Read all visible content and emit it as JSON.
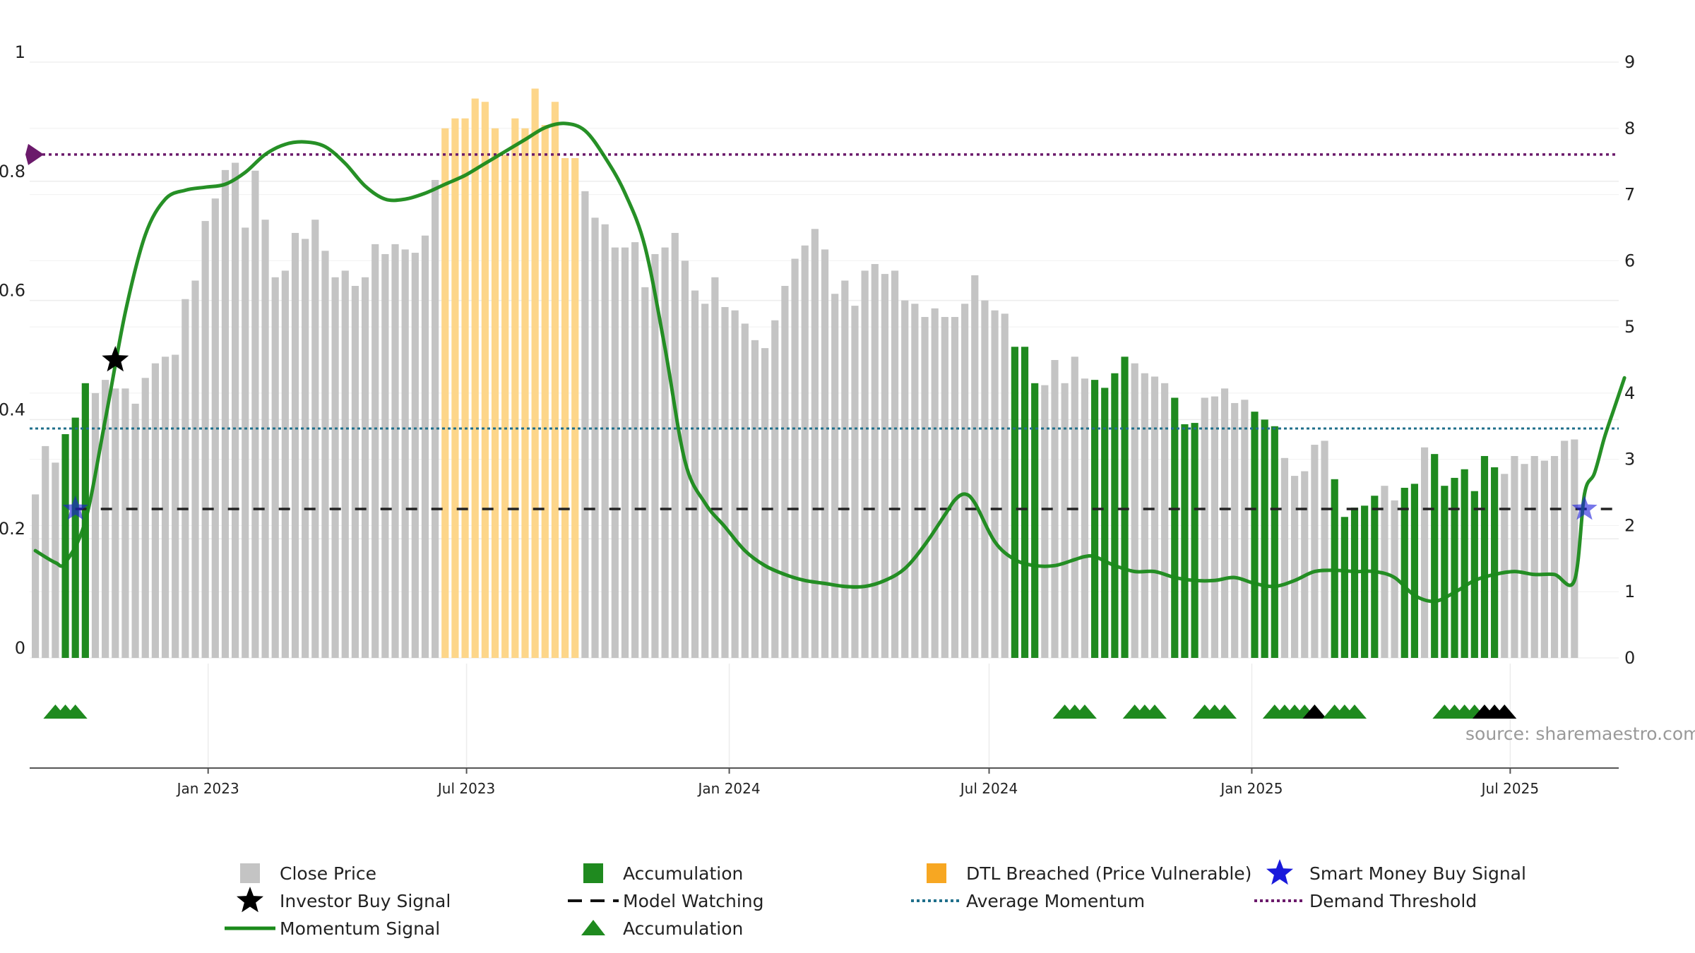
{
  "source": "source: sharemaestro.com",
  "legend": [
    {
      "label": "Close Price",
      "icon": "grey-square-icon"
    },
    {
      "label": "Accumulation",
      "icon": "green-square-icon"
    },
    {
      "label": "DTL Breached (Price Vulnerable)",
      "icon": "orange-square-icon"
    },
    {
      "label": "Smart Money Buy Signal",
      "icon": "blue-star-icon"
    },
    {
      "label": "Investor Buy Signal",
      "icon": "black-star-icon"
    },
    {
      "label": "Model Watching",
      "icon": "dashed-line-icon"
    },
    {
      "label": "Average Momentum",
      "icon": "dotted-blue-line-icon"
    },
    {
      "label": "Demand Threshold",
      "icon": "dotted-purple-line-icon"
    },
    {
      "label": "Momentum Signal",
      "icon": "green-line-icon"
    },
    {
      "label": "Accumulation",
      "icon": "green-triangle-icon"
    }
  ],
  "chart_data": {
    "type": "bar",
    "colors": {
      "close_price": "#c4c4c4",
      "accumulation": "#1f8a1f",
      "dtl_breached": "#fdd68a",
      "momentum": "#1a8a1a",
      "average_momentum": "#1f6f8b",
      "demand_threshold": "#6b1a6b",
      "model_watching": "#222222",
      "smart_money": "#1a1adb",
      "investor_buy": "#000000"
    },
    "left_axis": {
      "ylim": [
        0,
        1
      ],
      "ticks": [
        "0",
        "0.2",
        "0.4",
        "0.6",
        "0.8",
        "1"
      ]
    },
    "right_axis": {
      "ylim": [
        0,
        9
      ],
      "ticks": [
        "0",
        "1",
        "2",
        "3",
        "4",
        "5",
        "6",
        "7",
        "8",
        "9"
      ]
    },
    "x_ticks": [
      "Jan 2023",
      "Jul 2023",
      "Jan 2024",
      "Jul 2024",
      "Jan 2025",
      "Jul 2025"
    ],
    "x_range": [
      "2022-08-29",
      "2025-09-15"
    ],
    "bar_start_date": "2022-09-02",
    "bar_interval_days": 7,
    "close_price": [
      2.47,
      3.2,
      2.95,
      3.38,
      3.63,
      4.15,
      4.0,
      4.2,
      4.07,
      4.07,
      3.84,
      4.23,
      4.45,
      4.55,
      4.58,
      5.42,
      5.7,
      6.6,
      6.94,
      7.37,
      7.48,
      6.5,
      7.36,
      6.62,
      5.75,
      5.85,
      6.42,
      6.33,
      6.62,
      6.15,
      5.75,
      5.85,
      5.62,
      5.75,
      6.25,
      6.1,
      6.25,
      6.17,
      6.12,
      6.38,
      7.22,
      8.0,
      8.15,
      8.15,
      8.45,
      8.4,
      8.0,
      7.6,
      8.15,
      8.0,
      8.6,
      8.05,
      8.4,
      7.55,
      7.55,
      7.05,
      6.65,
      6.55,
      6.2,
      6.2,
      6.28,
      5.6,
      6.1,
      6.2,
      6.42,
      6.0,
      5.55,
      5.35,
      5.75,
      5.3,
      5.25,
      5.05,
      4.8,
      4.68,
      5.1,
      5.62,
      6.03,
      6.23,
      6.48,
      6.17,
      5.5,
      5.7,
      5.32,
      5.85,
      5.95,
      5.8,
      5.85,
      5.4,
      5.35,
      5.15,
      5.28,
      5.15,
      5.15,
      5.35,
      5.78,
      5.4,
      5.25,
      5.2,
      4.7,
      4.7,
      4.15,
      4.12,
      4.5,
      4.15,
      4.55,
      4.22,
      4.2,
      4.08,
      4.3,
      4.55,
      4.45,
      4.3,
      4.25,
      4.15,
      3.93,
      3.53,
      3.55,
      3.93,
      3.95,
      4.07,
      3.85,
      3.9,
      3.72,
      3.6,
      3.5,
      3.02,
      2.75,
      2.82,
      3.22,
      3.28,
      2.7,
      2.13,
      2.27,
      2.3,
      2.45,
      2.6,
      2.38,
      2.57,
      2.63,
      3.18,
      3.08,
      2.6,
      2.72,
      2.85,
      2.52,
      3.05,
      2.88,
      2.78,
      3.05,
      2.93,
      3.05,
      2.98,
      3.05,
      3.28,
      3.3
    ],
    "accumulation_bars": [
      3,
      4,
      5,
      98,
      99,
      100,
      106,
      107,
      108,
      109,
      114,
      115,
      116,
      122,
      123,
      124,
      130,
      131,
      132,
      133,
      134,
      137,
      138,
      140,
      141,
      142,
      143,
      144,
      145,
      146
    ],
    "dtl_breached_bars": [
      41,
      42,
      43,
      44,
      45,
      46,
      47,
      48,
      49,
      50,
      51,
      52,
      53,
      54
    ],
    "momentum_signal": [
      [
        "2022-09-02",
        0.18
      ],
      [
        "2022-09-16",
        0.16
      ],
      [
        "2022-09-23",
        0.16
      ],
      [
        "2022-10-07",
        0.23
      ],
      [
        "2022-10-21",
        0.4
      ],
      [
        "2022-11-04",
        0.58
      ],
      [
        "2022-11-18",
        0.71
      ],
      [
        "2022-12-02",
        0.77
      ],
      [
        "2022-12-16",
        0.785
      ],
      [
        "2022-12-30",
        0.79
      ],
      [
        "2023-01-13",
        0.795
      ],
      [
        "2023-01-27",
        0.815
      ],
      [
        "2023-02-10",
        0.845
      ],
      [
        "2023-02-24",
        0.862
      ],
      [
        "2023-03-10",
        0.866
      ],
      [
        "2023-03-24",
        0.858
      ],
      [
        "2023-04-07",
        0.83
      ],
      [
        "2023-04-21",
        0.792
      ],
      [
        "2023-05-05",
        0.77
      ],
      [
        "2023-05-19",
        0.77
      ],
      [
        "2023-06-02",
        0.78
      ],
      [
        "2023-06-16",
        0.795
      ],
      [
        "2023-06-30",
        0.81
      ],
      [
        "2023-07-14",
        0.83
      ],
      [
        "2023-07-28",
        0.85
      ],
      [
        "2023-08-11",
        0.87
      ],
      [
        "2023-08-25",
        0.89
      ],
      [
        "2023-09-08",
        0.897
      ],
      [
        "2023-09-22",
        0.885
      ],
      [
        "2023-10-06",
        0.84
      ],
      [
        "2023-10-20",
        0.78
      ],
      [
        "2023-11-03",
        0.69
      ],
      [
        "2023-11-17",
        0.52
      ],
      [
        "2023-12-01",
        0.33
      ],
      [
        "2023-12-15",
        0.26
      ],
      [
        "2023-12-29",
        0.22
      ],
      [
        "2024-01-12",
        0.18
      ],
      [
        "2024-01-26",
        0.155
      ],
      [
        "2024-02-09",
        0.14
      ],
      [
        "2024-02-23",
        0.13
      ],
      [
        "2024-03-08",
        0.125
      ],
      [
        "2024-03-22",
        0.12
      ],
      [
        "2024-04-05",
        0.12
      ],
      [
        "2024-04-19",
        0.13
      ],
      [
        "2024-05-03",
        0.15
      ],
      [
        "2024-05-17",
        0.19
      ],
      [
        "2024-05-31",
        0.24
      ],
      [
        "2024-06-07",
        0.265
      ],
      [
        "2024-06-14",
        0.275
      ],
      [
        "2024-06-21",
        0.26
      ],
      [
        "2024-07-05",
        0.195
      ],
      [
        "2024-07-19",
        0.165
      ],
      [
        "2024-08-02",
        0.155
      ],
      [
        "2024-08-16",
        0.155
      ],
      [
        "2024-08-30",
        0.165
      ],
      [
        "2024-09-06",
        0.17
      ],
      [
        "2024-09-13",
        0.17
      ],
      [
        "2024-09-27",
        0.155
      ],
      [
        "2024-10-11",
        0.145
      ],
      [
        "2024-10-25",
        0.145
      ],
      [
        "2024-11-08",
        0.135
      ],
      [
        "2024-11-22",
        0.13
      ],
      [
        "2024-12-06",
        0.13
      ],
      [
        "2024-12-20",
        0.135
      ],
      [
        "2025-01-03",
        0.125
      ],
      [
        "2025-01-17",
        0.12
      ],
      [
        "2025-01-31",
        0.13
      ],
      [
        "2025-02-14",
        0.145
      ],
      [
        "2025-02-28",
        0.147
      ],
      [
        "2025-03-14",
        0.145
      ],
      [
        "2025-03-28",
        0.145
      ],
      [
        "2025-04-11",
        0.135
      ],
      [
        "2025-04-25",
        0.105
      ],
      [
        "2025-05-09",
        0.095
      ],
      [
        "2025-05-23",
        0.11
      ],
      [
        "2025-06-06",
        0.13
      ],
      [
        "2025-06-20",
        0.14
      ],
      [
        "2025-07-04",
        0.145
      ],
      [
        "2025-07-18",
        0.14
      ],
      [
        "2025-08-01",
        0.14
      ],
      [
        "2025-08-15",
        0.13
      ],
      [
        "2025-08-22",
        0.275
      ],
      [
        "2025-08-29",
        0.31
      ],
      [
        "2025-09-05",
        0.37
      ],
      [
        "2025-09-12",
        0.42
      ],
      [
        "2025-09-19",
        0.47
      ]
    ],
    "average_momentum": 0.385,
    "demand_threshold": 0.845,
    "model_watching": 0.25,
    "smart_money_buy_signals": [
      [
        "2022-09-30",
        0.25
      ],
      [
        "2025-08-22",
        0.25
      ]
    ],
    "investor_buy_signals": [
      [
        "2022-10-28",
        0.5
      ]
    ],
    "accumulation_triangles": [
      {
        "date": "2022-09-16",
        "color": "green"
      },
      {
        "date": "2022-09-23",
        "color": "green"
      },
      {
        "date": "2022-09-30",
        "color": "green"
      },
      {
        "date": "2024-08-23",
        "color": "green"
      },
      {
        "date": "2024-08-30",
        "color": "green"
      },
      {
        "date": "2024-09-06",
        "color": "green"
      },
      {
        "date": "2024-10-11",
        "color": "green"
      },
      {
        "date": "2024-10-18",
        "color": "green"
      },
      {
        "date": "2024-10-25",
        "color": "green"
      },
      {
        "date": "2024-11-29",
        "color": "green"
      },
      {
        "date": "2024-12-06",
        "color": "green"
      },
      {
        "date": "2024-12-13",
        "color": "green"
      },
      {
        "date": "2025-01-17",
        "color": "green"
      },
      {
        "date": "2025-01-24",
        "color": "green"
      },
      {
        "date": "2025-01-31",
        "color": "green"
      },
      {
        "date": "2025-02-07",
        "color": "green"
      },
      {
        "date": "2025-02-14",
        "color": "black"
      },
      {
        "date": "2025-02-28",
        "color": "green"
      },
      {
        "date": "2025-03-07",
        "color": "green"
      },
      {
        "date": "2025-03-14",
        "color": "green"
      },
      {
        "date": "2025-05-16",
        "color": "green"
      },
      {
        "date": "2025-05-23",
        "color": "green"
      },
      {
        "date": "2025-05-30",
        "color": "green"
      },
      {
        "date": "2025-06-06",
        "color": "green"
      },
      {
        "date": "2025-06-13",
        "color": "black"
      },
      {
        "date": "2025-06-20",
        "color": "black"
      },
      {
        "date": "2025-06-27",
        "color": "black"
      }
    ]
  }
}
